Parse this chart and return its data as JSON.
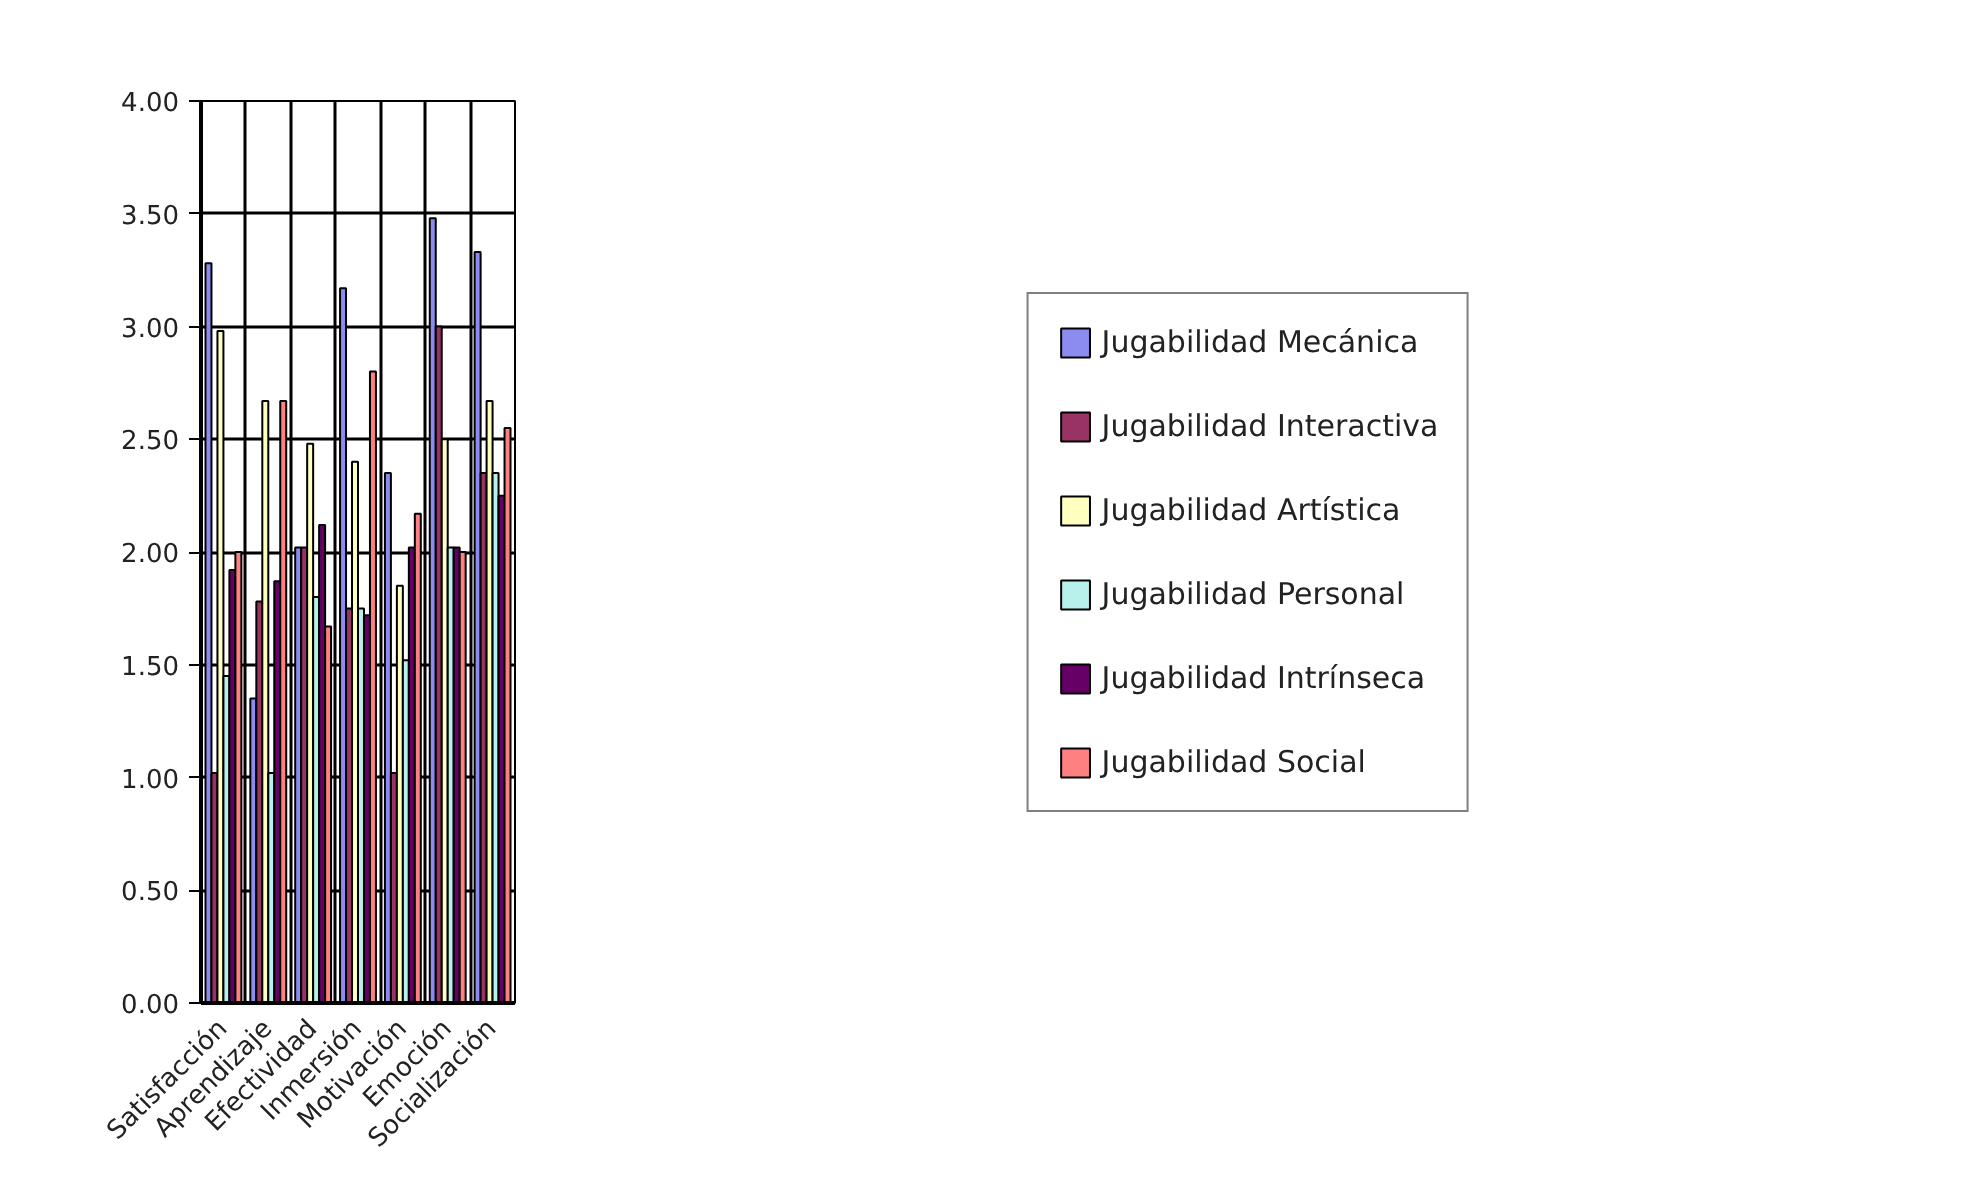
{
  "chart_data": {
    "type": "bar",
    "categories": [
      "Satisfacción",
      "Aprendizaje",
      "Efectividad",
      "Inmersión",
      "Motivación",
      "Emoción",
      "Socialización"
    ],
    "series": [
      {
        "name": "Jugabilidad Mecánica",
        "color": "#8c8cf0",
        "values": [
          3.28,
          1.35,
          2.02,
          3.17,
          2.35,
          3.48,
          3.33
        ]
      },
      {
        "name": "Jugabilidad Interactiva",
        "color": "#993366",
        "values": [
          1.02,
          1.78,
          2.02,
          1.75,
          1.02,
          3.0,
          2.35
        ]
      },
      {
        "name": "Jugabilidad Artística",
        "color": "#ffffc0",
        "values": [
          2.98,
          2.67,
          2.48,
          2.4,
          1.85,
          2.5,
          2.67
        ]
      },
      {
        "name": "Jugabilidad Personal",
        "color": "#b8f0ec",
        "values": [
          1.45,
          1.02,
          1.8,
          1.75,
          1.52,
          2.02,
          2.35
        ]
      },
      {
        "name": "Jugabilidad Intrínseca",
        "color": "#660066",
        "values": [
          1.92,
          1.87,
          2.12,
          1.72,
          2.02,
          2.02,
          2.25
        ]
      },
      {
        "name": "Jugabilidad Social",
        "color": "#ff8080",
        "values": [
          2.0,
          2.67,
          1.67,
          2.8,
          2.17,
          2.0,
          2.55
        ]
      }
    ],
    "ylim": [
      0,
      4
    ],
    "yticks": [
      {
        "value": 0,
        "label": "0.00"
      },
      {
        "value": 0.5,
        "label": "0.50"
      },
      {
        "value": 1,
        "label": "1.00"
      },
      {
        "value": 1.5,
        "label": "1.50"
      },
      {
        "value": 2,
        "label": "2.00"
      },
      {
        "value": 2.5,
        "label": "2.50"
      },
      {
        "value": 3,
        "label": "3.00"
      },
      {
        "value": 3.5,
        "label": "3.50"
      },
      {
        "value": 4,
        "label": "4.00"
      }
    ],
    "grid": true,
    "legend": "right"
  }
}
